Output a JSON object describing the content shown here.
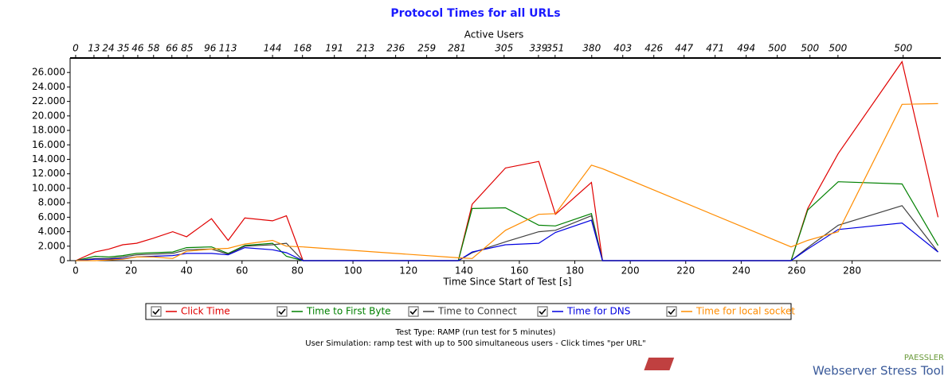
{
  "chart_data": {
    "type": "line",
    "title": "Protocol Times for all URLs",
    "x_label": "Time Since Start of Test [s]",
    "top_axis": {
      "label": "Active Users",
      "ticks": [
        {
          "value": 0,
          "label": "0"
        },
        {
          "value": 6.6,
          "label": "13"
        },
        {
          "value": 11.8,
          "label": "24"
        },
        {
          "value": 17.2,
          "label": "35"
        },
        {
          "value": 22.4,
          "label": "46"
        },
        {
          "value": 28.1,
          "label": "58"
        },
        {
          "value": 34.7,
          "label": "66"
        },
        {
          "value": 40.2,
          "label": "85"
        },
        {
          "value": 48.5,
          "label": "96"
        },
        {
          "value": 54.9,
          "label": "113"
        },
        {
          "value": 71.0,
          "label": "144"
        },
        {
          "value": 81.8,
          "label": "168"
        },
        {
          "value": 93.3,
          "label": "191"
        },
        {
          "value": 104.5,
          "label": "213"
        },
        {
          "value": 115.4,
          "label": "236"
        },
        {
          "value": 126.6,
          "label": "259"
        },
        {
          "value": 137.5,
          "label": "281"
        },
        {
          "value": 154.5,
          "label": "305"
        },
        {
          "value": 166.9,
          "label": "339"
        },
        {
          "value": 172.9,
          "label": "351"
        },
        {
          "value": 186.1,
          "label": "380"
        },
        {
          "value": 197.3,
          "label": "403"
        },
        {
          "value": 208.5,
          "label": "426"
        },
        {
          "value": 219.4,
          "label": "447"
        },
        {
          "value": 230.6,
          "label": "471"
        },
        {
          "value": 241.8,
          "label": "494"
        },
        {
          "value": 253.0,
          "label": "500"
        },
        {
          "value": 264.8,
          "label": "500"
        },
        {
          "value": 274.9,
          "label": "500"
        },
        {
          "value": 298.4,
          "label": "500"
        }
      ]
    },
    "x": [
      0,
      7,
      12,
      17,
      22,
      28,
      35,
      40,
      49,
      55,
      61,
      71,
      76,
      82,
      138,
      143,
      155,
      167,
      173,
      186,
      190,
      258,
      264,
      275,
      298,
      311
    ],
    "xlim": [
      -2,
      312
    ],
    "xticks": [
      0,
      20,
      40,
      60,
      80,
      100,
      120,
      140,
      160,
      180,
      200,
      220,
      240,
      260,
      280
    ],
    "ylim": [
      0,
      28000
    ],
    "yticks": [
      0,
      {
        "value": 2000,
        "label": "2.000"
      },
      {
        "value": 4000,
        "label": "4.000"
      },
      {
        "value": 6000,
        "label": "6.000"
      },
      {
        "value": 8000,
        "label": "8.000"
      },
      {
        "value": 10000,
        "label": "10.000"
      },
      {
        "value": 12000,
        "label": "12.000"
      },
      {
        "value": 14000,
        "label": "14.000"
      },
      {
        "value": 16000,
        "label": "16.000"
      },
      {
        "value": 18000,
        "label": "18.000"
      },
      {
        "value": 20000,
        "label": "20.000"
      },
      {
        "value": 22000,
        "label": "22.000"
      },
      {
        "value": 24000,
        "label": "24.000"
      },
      {
        "value": 26000,
        "label": "26.000"
      }
    ],
    "series": [
      {
        "name": "Click Time",
        "color": "#e00000",
        "values": [
          0,
          1200,
          1600,
          2200,
          2400,
          3100,
          4000,
          3300,
          5800,
          2800,
          5900,
          5500,
          6200,
          0,
          0,
          7800,
          12800,
          13700,
          6400,
          10800,
          0,
          0,
          7200,
          14800,
          27500,
          6000
        ]
      },
      {
        "name": "Time to First Byte",
        "color": "#008000",
        "values": [
          0,
          600,
          500,
          700,
          1000,
          1100,
          1200,
          1800,
          1900,
          1000,
          2100,
          2400,
          600,
          0,
          0,
          7200,
          7300,
          4900,
          4800,
          6500,
          0,
          0,
          7000,
          10900,
          10600,
          2100
        ]
      },
      {
        "name": "Time to Connect",
        "color": "#404040",
        "values": [
          0,
          300,
          300,
          500,
          800,
          900,
          1000,
          1500,
          1600,
          900,
          2000,
          2200,
          2400,
          0,
          0,
          1100,
          2600,
          4000,
          4200,
          6200,
          0,
          0,
          1800,
          4900,
          7600,
          1200
        ]
      },
      {
        "name": "Time for DNS",
        "color": "#0000e0",
        "values": [
          0,
          200,
          200,
          300,
          500,
          600,
          700,
          1000,
          1000,
          800,
          1800,
          1500,
          1100,
          0,
          0,
          1200,
          2200,
          2400,
          3900,
          5600,
          0,
          0,
          1600,
          4300,
          5200,
          1200
        ]
      },
      {
        "name": "Time for local socket",
        "color": "#ff8c00",
        "values": [
          0,
          0,
          100,
          200,
          500,
          500,
          300,
          1300,
          1600,
          1700,
          2300,
          2800,
          2000,
          1900,
          400,
          300,
          4200,
          6400,
          6500,
          13200,
          12700,
          1900,
          2800,
          4000,
          21600,
          21700
        ]
      }
    ],
    "footnotes": [
      "Test Type: RAMP (run test for 5 minutes)",
      "User Simulation: ramp test with up to 500 simultaneous users - Click times \"per URL\""
    ]
  },
  "branding": {
    "brand": "PAESSLER",
    "product": "Webserver Stress Tool"
  }
}
